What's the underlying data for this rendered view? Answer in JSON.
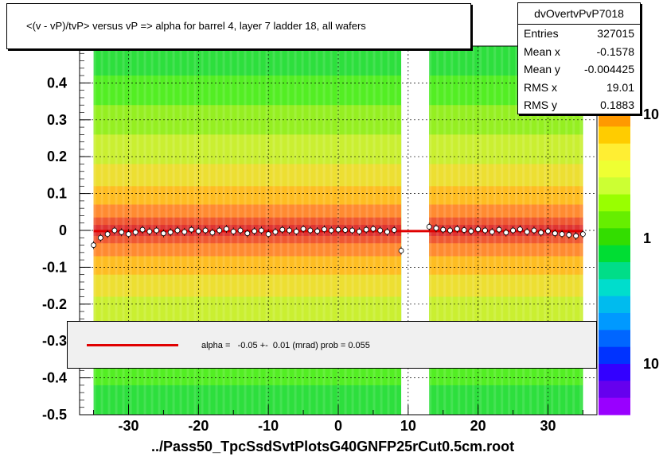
{
  "title": "<(v - vP)/tvP> versus   vP => alpha for barrel 4, layer 7 ladder 18, all wafers",
  "stats": {
    "name": "dvOvertvPvP7018",
    "rows": [
      {
        "label": "Entries",
        "value": "327015"
      },
      {
        "label": "Mean x",
        "value": "-0.1578"
      },
      {
        "label": "Mean y",
        "value": "-0.004425"
      },
      {
        "label": "RMS x",
        "value": "19.01"
      },
      {
        "label": "RMS y",
        "value": "0.1883"
      }
    ]
  },
  "legend": {
    "fit_label": "alpha =   -0.05 +-  0.01 (mrad) prob = 0.055",
    "fit_color": "#e00000"
  },
  "xaxis_file_label": "../Pass50_TpcSsdSvtPlotsG40GNFP25rCut0.5cm.root",
  "colorbar": {
    "labels": [
      "10",
      "1",
      "10"
    ],
    "colors": [
      "#ff9900",
      "#ffcc00",
      "#ffee33",
      "#eeff33",
      "#ccff33",
      "#99ff00",
      "#66ee00",
      "#33dd00",
      "#00dd33",
      "#00dd88",
      "#00ddcc",
      "#00bbee",
      "#0099ff",
      "#0066ff",
      "#0033ff",
      "#3300ff",
      "#6600ee",
      "#9900ff"
    ]
  },
  "chart_data": {
    "type": "heatmap",
    "xlim": [
      -37,
      37
    ],
    "ylim": [
      -0.5,
      0.5
    ],
    "xticks": [
      -30,
      -20,
      -10,
      0,
      10,
      20,
      30
    ],
    "yticks": [
      -0.5,
      -0.4,
      -0.3,
      -0.2,
      -0.1,
      0,
      0.1,
      0.2,
      0.3,
      0.4
    ],
    "data_ranges_x": [
      [
        -35,
        9
      ],
      [
        13,
        35
      ]
    ],
    "fit_line": {
      "x": [
        -35,
        35
      ],
      "y": [
        -0.002,
        -0.002
      ]
    },
    "profile_points": {
      "x": [
        -35,
        -34,
        -33,
        -32,
        -31,
        -30,
        -29,
        -28,
        -27,
        -26,
        -25,
        -24,
        -23,
        -22,
        -21,
        -20,
        -19,
        -18,
        -17,
        -16,
        -15,
        -14,
        -13,
        -12,
        -11,
        -10,
        -9,
        -8,
        -7,
        -6,
        -5,
        -4,
        -3,
        -2,
        -1,
        0,
        1,
        2,
        3,
        4,
        5,
        6,
        7,
        8,
        9,
        13,
        14,
        15,
        16,
        17,
        18,
        19,
        20,
        21,
        22,
        23,
        24,
        25,
        26,
        27,
        28,
        29,
        30,
        31,
        32,
        33,
        34,
        35
      ],
      "y": [
        -0.04,
        -0.02,
        -0.01,
        0.0,
        -0.005,
        -0.01,
        -0.005,
        0.002,
        -0.003,
        0.0,
        -0.008,
        -0.005,
        0.0,
        -0.004,
        0.002,
        -0.002,
        0.0,
        -0.006,
        0.0,
        0.004,
        -0.003,
        0.0,
        -0.008,
        -0.002,
        0.0,
        -0.01,
        -0.004,
        0.002,
        0.0,
        -0.003,
        0.004,
        0.0,
        -0.002,
        0.003,
        0.0,
        0.002,
        0.001,
        0.0,
        -0.003,
        0.002,
        0.004,
        0.0,
        -0.004,
        0.001,
        -0.055,
        0.01,
        0.006,
        0.002,
        0.0,
        0.004,
        0.001,
        -0.002,
        0.003,
        0.0,
        -0.004,
        0.002,
        -0.006,
        0.0,
        0.003,
        -0.004,
        0.0,
        -0.006,
        -0.002,
        -0.008,
        -0.01,
        -0.012,
        -0.015,
        -0.01
      ]
    }
  }
}
